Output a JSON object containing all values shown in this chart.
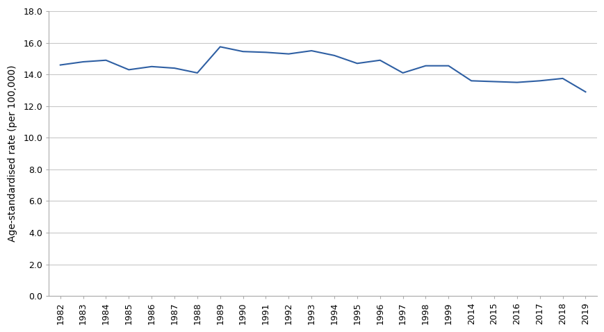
{
  "years": [
    1982,
    1983,
    1984,
    1985,
    1986,
    1987,
    1988,
    1989,
    1990,
    1991,
    1992,
    1993,
    1994,
    1995,
    1996,
    1997,
    1998,
    1999,
    2014,
    2015,
    2016,
    2017,
    2018,
    2019
  ],
  "values": [
    14.6,
    14.8,
    14.9,
    14.3,
    14.5,
    14.4,
    14.1,
    15.75,
    15.45,
    15.4,
    15.3,
    15.5,
    15.2,
    14.7,
    14.9,
    14.1,
    14.55,
    14.55,
    13.6,
    13.55,
    13.5,
    13.6,
    13.75,
    12.9
  ],
  "line_color": "#2E5FA3",
  "line_width": 1.5,
  "ylabel": "Age-standardised rate (per 100,000)",
  "ylim": [
    0,
    18.0
  ],
  "yticks": [
    0.0,
    2.0,
    4.0,
    6.0,
    8.0,
    10.0,
    12.0,
    14.0,
    16.0,
    18.0
  ],
  "grid_color": "#C8C8C8",
  "bg_color": "#FFFFFF",
  "tick_label_fontsize": 9,
  "axis_label_fontsize": 10,
  "spine_color": "#AAAAAA",
  "font_family": "sans-serif"
}
